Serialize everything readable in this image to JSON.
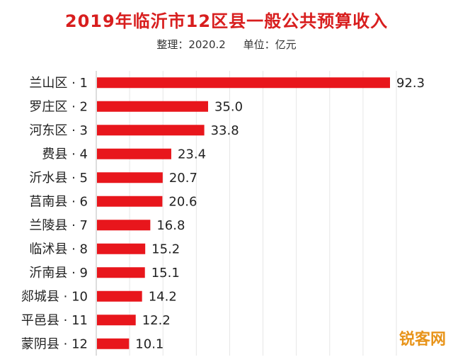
{
  "header": {
    "title": "2019年临沂市12区县一般公共预算收入",
    "compiled": "整理：2020.2",
    "unit": "单位：亿元"
  },
  "watermark": "锐客网",
  "colors": {
    "bar": "#e8161c",
    "title": "#d81e1e",
    "watermark": "#e8941a"
  },
  "chart_data": {
    "type": "bar",
    "orientation": "horizontal",
    "title": "2019年临沂市12区县一般公共预算收入",
    "categories": [
      "兰山区 · 1",
      "罗庄区 · 2",
      "河东区 · 3",
      "费县 · 4",
      "沂水县 · 5",
      "莒南县 · 6",
      "兰陵县 · 7",
      "临沭县 · 8",
      "沂南县 · 9",
      "郯城县 · 10",
      "平邑县 · 11",
      "蒙阴县 · 12"
    ],
    "values": [
      92.3,
      35.0,
      33.8,
      23.4,
      20.7,
      20.6,
      16.8,
      15.2,
      15.1,
      14.2,
      12.2,
      10.1
    ],
    "value_labels": [
      "92.3",
      "35.0",
      "33.8",
      "23.4",
      "20.7",
      "20.6",
      "16.8",
      "15.2",
      "15.1",
      "14.2",
      "12.2",
      "10.1"
    ],
    "xlim": [
      0,
      92.3
    ],
    "grid": true,
    "xlabel": "",
    "ylabel": ""
  }
}
